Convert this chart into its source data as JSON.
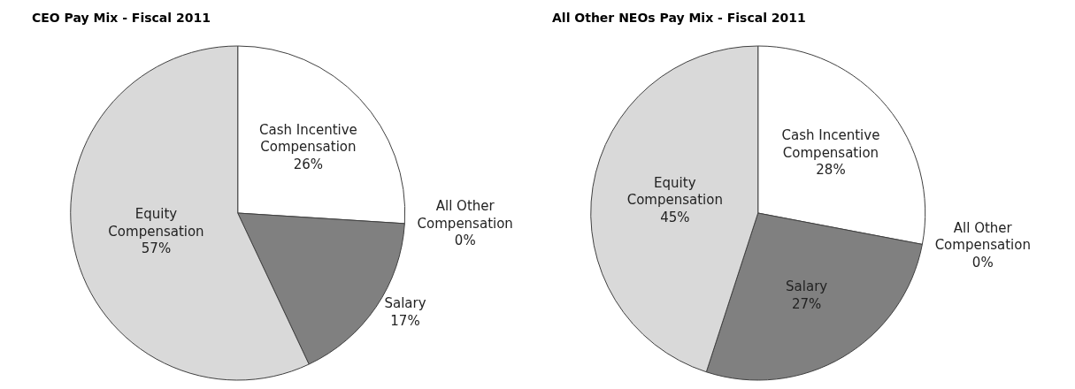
{
  "chart_data": [
    {
      "type": "pie",
      "title": "CEO Pay Mix - Fiscal 2011",
      "categories": [
        "Cash Incentive Compensation",
        "All Other Compensation",
        "Salary",
        "Equity Compensation"
      ],
      "values": [
        26,
        0,
        17,
        57
      ],
      "value_labels": [
        "26%",
        "0%",
        "17%",
        "57%"
      ],
      "colors": [
        "#ffffff",
        "#ffffff",
        "#808080",
        "#d9d9d9"
      ],
      "legend": false
    },
    {
      "type": "pie",
      "title": "All Other NEOs Pay Mix - Fiscal 2011",
      "categories": [
        "Cash Incentive Compensation",
        "All Other Compensation",
        "Salary",
        "Equity Compensation"
      ],
      "values": [
        28,
        0,
        27,
        45
      ],
      "value_labels": [
        "28%",
        "0%",
        "27%",
        "45%"
      ],
      "colors": [
        "#ffffff",
        "#ffffff",
        "#808080",
        "#d9d9d9"
      ],
      "legend": false
    }
  ]
}
